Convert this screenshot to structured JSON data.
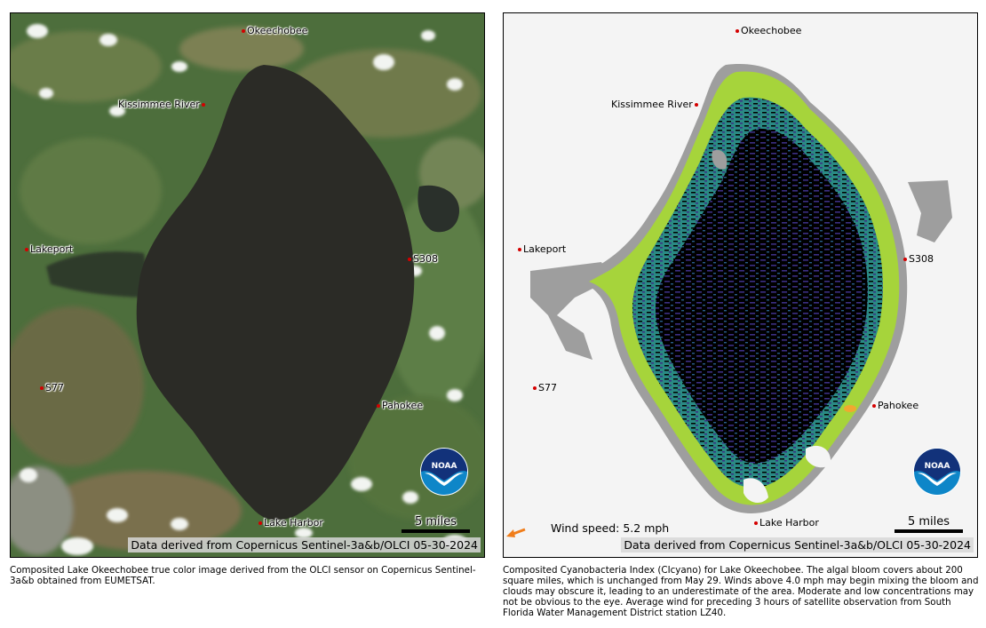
{
  "left": {
    "places": {
      "okeechobee": "Okeechobee",
      "kissimmee": "Kissimmee River",
      "lakeport": "Lakeport",
      "s308": "S308",
      "s77": "S77",
      "pahokee": "Pahokee",
      "lake_harbor": "Lake Harbor"
    },
    "scale_label": "5 miles",
    "attribution": "Data derived from Copernicus Sentinel-3a&b/OLCI 05-30-2024",
    "caption": "Composited Lake Okeechobee true color image derived from the OLCI sensor on Copernicus Sentinel-3a&b obtained from EUMETSAT."
  },
  "right": {
    "places": {
      "okeechobee": "Okeechobee",
      "kissimmee": "Kissimmee River",
      "lakeport": "Lakeport",
      "s308": "S308",
      "s77": "S77",
      "pahokee": "Pahokee",
      "lake_harbor": "Lake Harbor"
    },
    "wind_speed": "Wind speed: 5.2 mph",
    "scale_label": "5 miles",
    "attribution": "Data derived from Copernicus Sentinel-3a&b/OLCI 05-30-2024",
    "caption": "Composited Cyanobacteria Index (CIcyano) for Lake Okeechobee. The algal bloom covers about 200 square miles, which is unchanged from May 29.  Winds above 4.0 mph may begin mixing the bloom and clouds may obscure it, leading to an underestimate of the area. Moderate and low concentrations may not be obvious to the eye. Average wind for preceding 3 hours of satellite observation from South Florida Water Management District station LZ40."
  },
  "logo": {
    "text": "NOAA"
  },
  "colors": {
    "lake_dark": "#2b2b26",
    "land_green": "#4a6b39",
    "bloom_yellow_green": "#a6d43b",
    "bloom_teal": "#2a8a84",
    "bloom_purple": "#3b2f83",
    "no_data_gray": "#9e9e9e",
    "site_dot": "#d40000",
    "wind_arrow": "#f07d1a",
    "noaa_navy": "#12327a",
    "noaa_blue": "#0e86c8"
  }
}
